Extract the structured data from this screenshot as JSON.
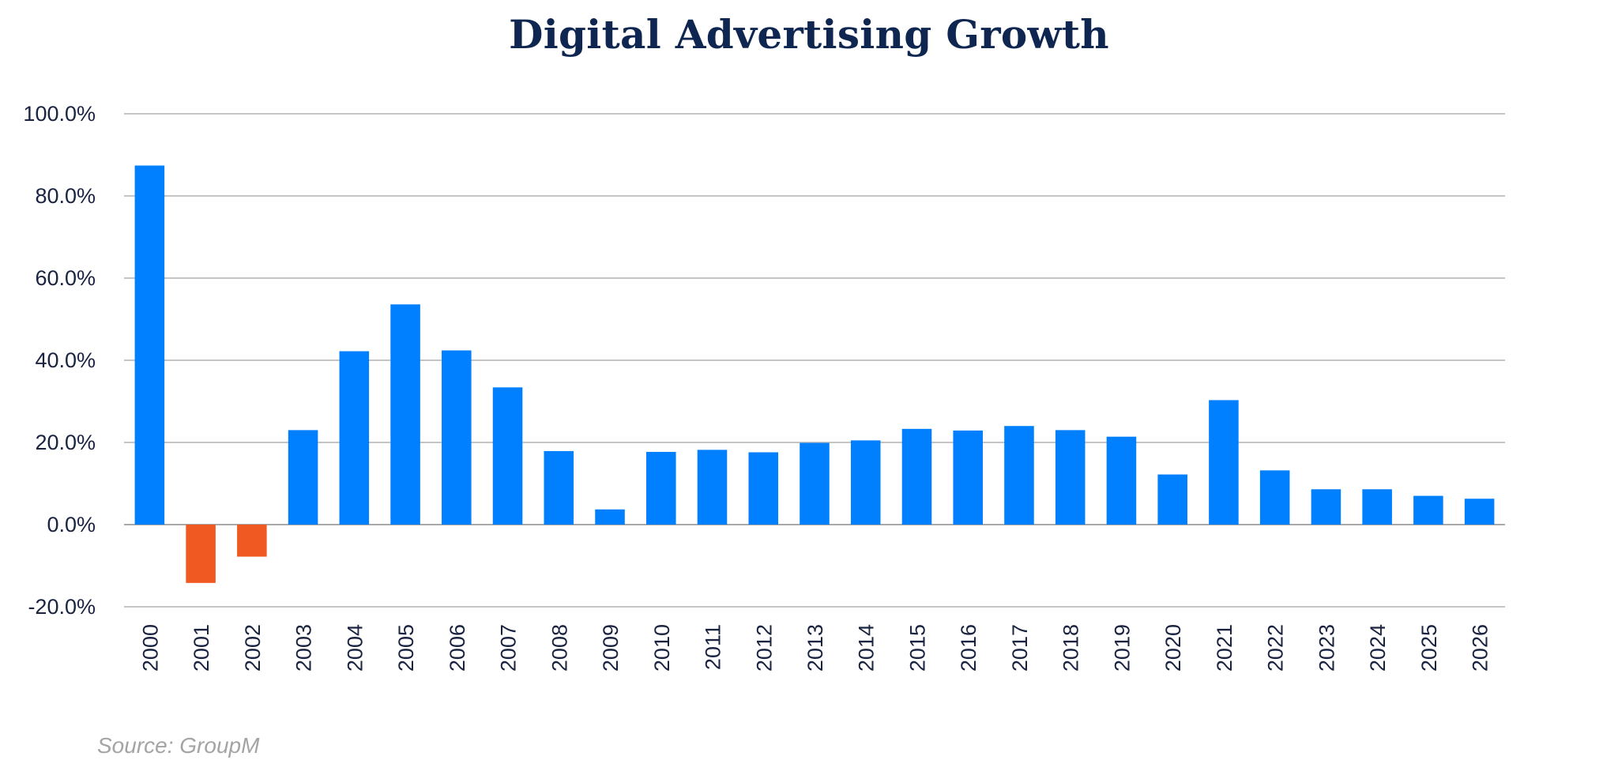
{
  "chart_data": {
    "type": "bar",
    "title": "Digital Advertising Growth",
    "xlabel": "",
    "ylabel": "",
    "ylim": [
      -20,
      100
    ],
    "y_ticks": [
      -20,
      0,
      20,
      40,
      60,
      80,
      100
    ],
    "y_tick_labels": [
      "-20.0%",
      "0.0%",
      "20.0%",
      "40.0%",
      "60.0%",
      "80.0%",
      "100.0%"
    ],
    "grid": true,
    "categories": [
      "2000",
      "2001",
      "2002",
      "2003",
      "2004",
      "2005",
      "2006",
      "2007",
      "2008",
      "2009",
      "2010",
      "2011",
      "2012",
      "2013",
      "2014",
      "2015",
      "2016",
      "2017",
      "2018",
      "2019",
      "2020",
      "2021",
      "2022",
      "2023",
      "2024",
      "2025",
      "2026"
    ],
    "values": [
      87.4,
      -14.2,
      -7.8,
      23.0,
      42.2,
      53.6,
      42.4,
      33.4,
      17.9,
      3.7,
      17.7,
      18.2,
      17.6,
      19.9,
      20.5,
      23.3,
      22.9,
      24.0,
      23.0,
      21.4,
      12.2,
      30.3,
      13.2,
      8.6,
      8.6,
      7.0,
      6.3
    ],
    "colors": {
      "positive": "#0080ff",
      "negative": "#f05a22",
      "grid": "#c4c4c4",
      "baseline": "#aaaaaa"
    },
    "source": "Source: GroupM"
  }
}
